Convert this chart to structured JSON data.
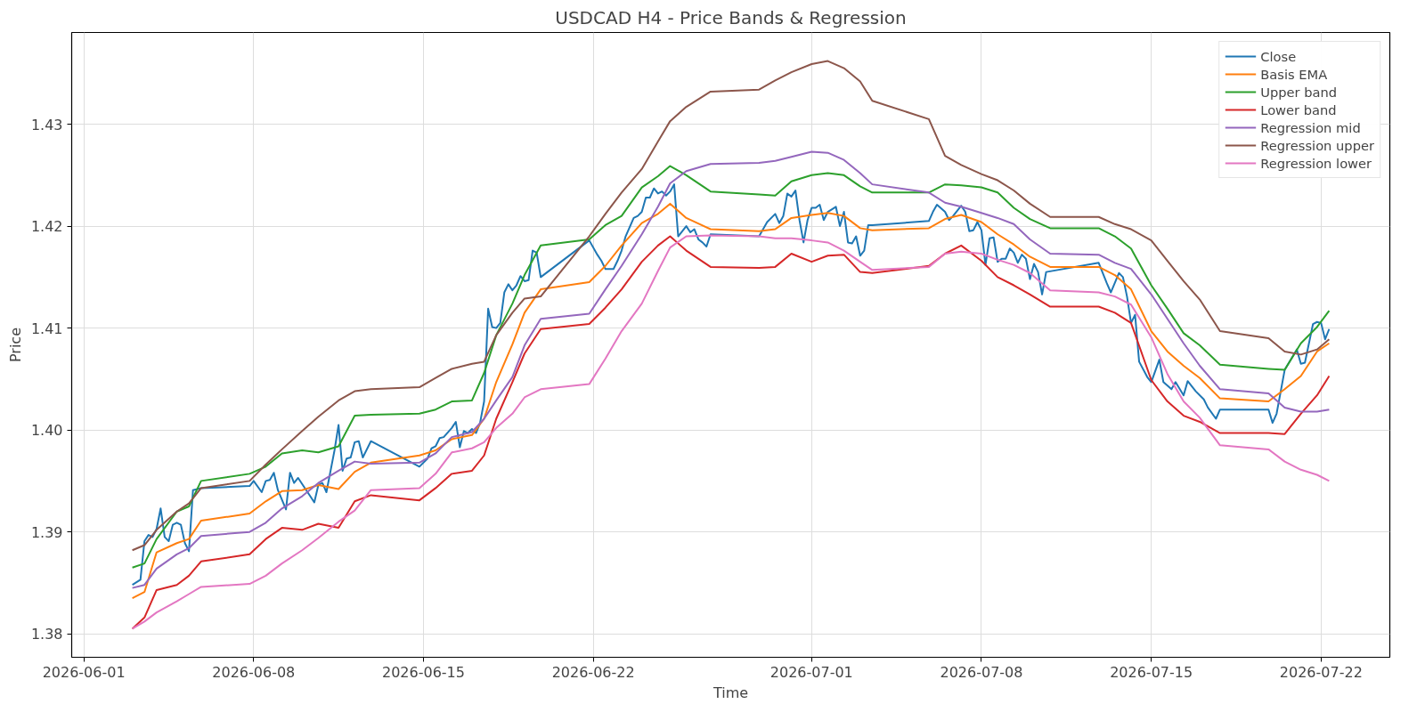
{
  "chart_data": {
    "type": "line",
    "title": "USDCAD H4 - Price Bands & Regression",
    "xlabel": "Time",
    "ylabel": "Price",
    "x": [
      "2026-06-03T00:00",
      "2026-06-03T12:00",
      "2026-06-04T00:00",
      "2026-06-04T20:00",
      "2026-06-05T08:00",
      "2026-06-05T20:00",
      "2026-06-07T20:00",
      "2026-06-08T12:00",
      "2026-06-09T04:00",
      "2026-06-10T00:00",
      "2026-06-10T16:00",
      "2026-06-11T12:00",
      "2026-06-12T04:00",
      "2026-06-12T20:00",
      "2026-06-14T20:00",
      "2026-06-15T12:00",
      "2026-06-16T04:00",
      "2026-06-17T00:00",
      "2026-06-17T12:00",
      "2026-06-18T00:00",
      "2026-06-18T16:00",
      "2026-06-19T04:00",
      "2026-06-19T20:00",
      "2026-06-21T20:00",
      "2026-06-22T12:00",
      "2026-06-23T04:00",
      "2026-06-24T00:00",
      "2026-06-24T16:00",
      "2026-06-25T04:00",
      "2026-06-25T20:00",
      "2026-06-26T20:00",
      "2026-06-28T20:00",
      "2026-06-29T12:00",
      "2026-06-30T04:00",
      "2026-07-01T00:00",
      "2026-07-01T16:00",
      "2026-07-02T08:00",
      "2026-07-03T00:00",
      "2026-07-03T12:00",
      "2026-07-05T20:00",
      "2026-07-06T12:00",
      "2026-07-07T04:00",
      "2026-07-08T00:00",
      "2026-07-08T16:00",
      "2026-07-09T08:00",
      "2026-07-10T00:00",
      "2026-07-10T20:00",
      "2026-07-12T20:00",
      "2026-07-13T12:00",
      "2026-07-14T04:00",
      "2026-07-15T00:00",
      "2026-07-15T16:00",
      "2026-07-16T08:00",
      "2026-07-17T00:00",
      "2026-07-17T20:00",
      "2026-07-19T20:00",
      "2026-07-20T12:00",
      "2026-07-21T04:00",
      "2026-07-21T20:00",
      "2026-07-22T08:00"
    ],
    "series": [
      {
        "name": "Close",
        "color": "#1f77b4",
        "x": [
          "2026-06-03T00:00",
          "2026-06-03T08:00",
          "2026-06-03T12:00",
          "2026-06-03T16:00",
          "2026-06-03T20:00",
          "2026-06-04T00:00",
          "2026-06-04T04:00",
          "2026-06-04T08:00",
          "2026-06-04T12:00",
          "2026-06-04T16:00",
          "2026-06-04T20:00",
          "2026-06-05T00:00",
          "2026-06-05T04:00",
          "2026-06-05T08:00",
          "2026-06-05T12:00",
          "2026-06-05T20:00",
          "2026-06-07T20:00",
          "2026-06-08T00:00",
          "2026-06-08T08:00",
          "2026-06-08T12:00",
          "2026-06-08T16:00",
          "2026-06-08T20:00",
          "2026-06-09T00:00",
          "2026-06-09T08:00",
          "2026-06-09T12:00",
          "2026-06-09T16:00",
          "2026-06-09T20:00",
          "2026-06-10T04:00",
          "2026-06-10T08:00",
          "2026-06-10T12:00",
          "2026-06-10T16:00",
          "2026-06-10T20:00",
          "2026-06-11T00:00",
          "2026-06-11T08:00",
          "2026-06-11T12:00",
          "2026-06-11T16:00",
          "2026-06-11T20:00",
          "2026-06-12T00:00",
          "2026-06-12T04:00",
          "2026-06-12T08:00",
          "2026-06-12T12:00",
          "2026-06-12T20:00",
          "2026-06-14T20:00",
          "2026-06-15T04:00",
          "2026-06-15T08:00",
          "2026-06-15T12:00",
          "2026-06-15T16:00",
          "2026-06-15T20:00",
          "2026-06-16T04:00",
          "2026-06-16T08:00",
          "2026-06-16T12:00",
          "2026-06-16T16:00",
          "2026-06-16T20:00",
          "2026-06-17T00:00",
          "2026-06-17T04:00",
          "2026-06-17T08:00",
          "2026-06-17T12:00",
          "2026-06-17T16:00",
          "2026-06-17T20:00",
          "2026-06-18T00:00",
          "2026-06-18T04:00",
          "2026-06-18T08:00",
          "2026-06-18T12:00",
          "2026-06-18T16:00",
          "2026-06-18T20:00",
          "2026-06-19T00:00",
          "2026-06-19T04:00",
          "2026-06-19T08:00",
          "2026-06-19T12:00",
          "2026-06-19T16:00",
          "2026-06-19T20:00",
          "2026-06-21T20:00",
          "2026-06-22T04:00",
          "2026-06-22T08:00",
          "2026-06-22T12:00",
          "2026-06-22T20:00",
          "2026-06-23T00:00",
          "2026-06-23T04:00",
          "2026-06-23T08:00",
          "2026-06-23T16:00",
          "2026-06-23T20:00",
          "2026-06-24T00:00",
          "2026-06-24T04:00",
          "2026-06-24T08:00",
          "2026-06-24T12:00",
          "2026-06-24T16:00",
          "2026-06-24T20:00",
          "2026-06-25T00:00",
          "2026-06-25T04:00",
          "2026-06-25T08:00",
          "2026-06-25T12:00",
          "2026-06-25T16:00",
          "2026-06-25T20:00",
          "2026-06-26T00:00",
          "2026-06-26T04:00",
          "2026-06-26T08:00",
          "2026-06-26T12:00",
          "2026-06-26T16:00",
          "2026-06-26T20:00",
          "2026-06-28T20:00",
          "2026-06-29T04:00",
          "2026-06-29T12:00",
          "2026-06-29T16:00",
          "2026-06-29T20:00",
          "2026-06-30T00:00",
          "2026-06-30T04:00",
          "2026-06-30T08:00",
          "2026-06-30T12:00",
          "2026-06-30T16:00",
          "2026-06-30T20:00",
          "2026-07-01T00:00",
          "2026-07-01T04:00",
          "2026-07-01T08:00",
          "2026-07-01T12:00",
          "2026-07-01T16:00",
          "2026-07-02T00:00",
          "2026-07-02T04:00",
          "2026-07-02T08:00",
          "2026-07-02T12:00",
          "2026-07-02T16:00",
          "2026-07-02T20:00",
          "2026-07-03T00:00",
          "2026-07-03T04:00",
          "2026-07-03T08:00",
          "2026-07-03T12:00",
          "2026-07-05T20:00",
          "2026-07-06T00:00",
          "2026-07-06T04:00",
          "2026-07-06T12:00",
          "2026-07-06T16:00",
          "2026-07-06T20:00",
          "2026-07-07T04:00",
          "2026-07-07T08:00",
          "2026-07-07T12:00",
          "2026-07-07T16:00",
          "2026-07-07T20:00",
          "2026-07-08T00:00",
          "2026-07-08T04:00",
          "2026-07-08T08:00",
          "2026-07-08T12:00",
          "2026-07-08T16:00",
          "2026-07-08T20:00",
          "2026-07-09T00:00",
          "2026-07-09T04:00",
          "2026-07-09T08:00",
          "2026-07-09T12:00",
          "2026-07-09T16:00",
          "2026-07-09T20:00",
          "2026-07-10T00:00",
          "2026-07-10T04:00",
          "2026-07-10T08:00",
          "2026-07-10T12:00",
          "2026-07-10T16:00",
          "2026-07-12T20:00",
          "2026-07-13T04:00",
          "2026-07-13T08:00",
          "2026-07-13T16:00",
          "2026-07-13T20:00",
          "2026-07-14T00:00",
          "2026-07-14T04:00",
          "2026-07-14T08:00",
          "2026-07-14T12:00",
          "2026-07-14T20:00",
          "2026-07-15T00:00",
          "2026-07-15T08:00",
          "2026-07-15T12:00",
          "2026-07-15T20:00",
          "2026-07-16T00:00",
          "2026-07-16T08:00",
          "2026-07-16T12:00",
          "2026-07-16T20:00",
          "2026-07-17T04:00",
          "2026-07-17T08:00",
          "2026-07-17T16:00",
          "2026-07-17T20:00",
          "2026-07-19T20:00",
          "2026-07-20T00:00",
          "2026-07-20T04:00",
          "2026-07-20T12:00",
          "2026-07-21T00:00",
          "2026-07-21T04:00",
          "2026-07-21T08:00",
          "2026-07-21T16:00",
          "2026-07-21T20:00",
          "2026-07-22T00:00",
          "2026-07-22T04:00",
          "2026-07-22T08:00"
        ],
        "values": [
          1.3848,
          1.3853,
          1.3891,
          1.3897,
          1.3895,
          1.3903,
          1.3923,
          1.3895,
          1.3891,
          1.3907,
          1.3909,
          1.3907,
          1.3889,
          1.3881,
          1.3941,
          1.3943,
          1.3945,
          1.395,
          1.3939,
          1.395,
          1.3951,
          1.3958,
          1.3941,
          1.3922,
          1.3958,
          1.3948,
          1.3953,
          1.3941,
          1.3935,
          1.3929,
          1.3946,
          1.3948,
          1.3939,
          1.398,
          1.4005,
          1.396,
          1.3972,
          1.3973,
          1.3988,
          1.3989,
          1.3973,
          1.3989,
          1.3964,
          1.3972,
          1.3982,
          1.3984,
          1.3992,
          1.3993,
          1.4002,
          1.4008,
          1.3983,
          1.3999,
          1.3997,
          1.4001,
          1.3997,
          1.4007,
          1.4028,
          1.4119,
          1.4101,
          1.41,
          1.4105,
          1.4135,
          1.4143,
          1.4137,
          1.4142,
          1.4151,
          1.4146,
          1.4147,
          1.4176,
          1.4174,
          1.415,
          1.4186,
          1.4172,
          1.4166,
          1.4158,
          1.4158,
          1.4166,
          1.4176,
          1.419,
          1.4208,
          1.421,
          1.4214,
          1.4228,
          1.4228,
          1.4237,
          1.4232,
          1.4234,
          1.423,
          1.4234,
          1.4241,
          1.419,
          1.4195,
          1.42,
          1.4194,
          1.4197,
          1.4187,
          1.4184,
          1.418,
          1.4192,
          1.419,
          1.4204,
          1.4212,
          1.4203,
          1.421,
          1.4232,
          1.4229,
          1.4235,
          1.4206,
          1.4184,
          1.4206,
          1.4218,
          1.4218,
          1.4221,
          1.4206,
          1.4214,
          1.4219,
          1.42,
          1.4214,
          1.4184,
          1.4183,
          1.419,
          1.4171,
          1.4176,
          1.4201,
          1.4201,
          1.4205,
          1.4214,
          1.4221,
          1.4214,
          1.4206,
          1.421,
          1.422,
          1.4214,
          1.4195,
          1.4196,
          1.4204,
          1.4196,
          1.4162,
          1.4188,
          1.4189,
          1.4165,
          1.4168,
          1.4168,
          1.4178,
          1.4174,
          1.4164,
          1.4172,
          1.4168,
          1.4148,
          1.4163,
          1.4155,
          1.4133,
          1.4155,
          1.4164,
          1.4144,
          1.4135,
          1.4154,
          1.415,
          1.4131,
          1.4105,
          1.4113,
          1.4067,
          1.4052,
          1.4047,
          1.4069,
          1.4047,
          1.404,
          1.4047,
          1.4034,
          1.4048,
          1.4038,
          1.403,
          1.4022,
          1.4011,
          1.402,
          1.402,
          1.4007,
          1.4016,
          1.4059,
          1.4079,
          1.4065,
          1.4066,
          1.4104,
          1.4106,
          1.4105,
          1.4089,
          1.4099
        ]
      },
      {
        "name": "Basis EMA",
        "color": "#ff7f0e",
        "values": [
          1.3835,
          1.3841,
          1.388,
          1.3889,
          1.3893,
          1.3911,
          1.3918,
          1.393,
          1.394,
          1.3941,
          1.3946,
          1.3942,
          1.3959,
          1.3968,
          1.3975,
          1.398,
          1.3991,
          1.3995,
          1.4011,
          1.4047,
          1.4084,
          1.4115,
          1.4138,
          1.4145,
          1.4161,
          1.4181,
          1.4203,
          1.4212,
          1.4222,
          1.4208,
          1.4197,
          1.4195,
          1.4197,
          1.4208,
          1.4211,
          1.4213,
          1.421,
          1.4198,
          1.4196,
          1.4198,
          1.4207,
          1.4211,
          1.4204,
          1.4192,
          1.4182,
          1.417,
          1.416,
          1.416,
          1.4152,
          1.4138,
          1.4097,
          1.4077,
          1.4063,
          1.4051,
          1.4031,
          1.4028,
          1.404,
          1.4053,
          1.4077,
          1.4085
        ]
      },
      {
        "name": "Upper band",
        "color": "#2ca02c",
        "values": [
          1.3865,
          1.3869,
          1.3893,
          1.392,
          1.3925,
          1.395,
          1.3957,
          1.3964,
          1.3977,
          1.398,
          1.3978,
          1.3984,
          1.4014,
          1.4015,
          1.4016,
          1.402,
          1.4028,
          1.4029,
          1.4056,
          1.4093,
          1.4124,
          1.4152,
          1.4181,
          1.4187,
          1.4201,
          1.421,
          1.4238,
          1.4249,
          1.4259,
          1.425,
          1.4234,
          1.4231,
          1.423,
          1.4244,
          1.425,
          1.4252,
          1.425,
          1.4239,
          1.4233,
          1.4233,
          1.4241,
          1.424,
          1.4238,
          1.4233,
          1.4218,
          1.4207,
          1.4198,
          1.4198,
          1.419,
          1.4178,
          1.4142,
          1.4119,
          1.4095,
          1.4083,
          1.4064,
          1.406,
          1.4059,
          1.4085,
          1.4101,
          1.4117
        ]
      },
      {
        "name": "Lower band",
        "color": "#d62728",
        "values": [
          1.3805,
          1.3816,
          1.3843,
          1.3848,
          1.3857,
          1.3871,
          1.3878,
          1.3893,
          1.3904,
          1.3902,
          1.3908,
          1.3904,
          1.393,
          1.3936,
          1.3931,
          1.3943,
          1.3957,
          1.396,
          1.3975,
          1.4011,
          1.4047,
          1.4075,
          1.4099,
          1.4104,
          1.412,
          1.4138,
          1.4165,
          1.4181,
          1.419,
          1.4176,
          1.416,
          1.4159,
          1.416,
          1.4173,
          1.4165,
          1.4171,
          1.4172,
          1.4155,
          1.4154,
          1.4161,
          1.4173,
          1.4181,
          1.4166,
          1.415,
          1.4142,
          1.4133,
          1.4121,
          1.4121,
          1.4115,
          1.4105,
          1.4049,
          1.4028,
          1.4014,
          1.4008,
          1.3997,
          1.3997,
          1.3996,
          1.4016,
          1.4034,
          1.4053
        ]
      },
      {
        "name": "Regression mid",
        "color": "#9467bd",
        "values": [
          1.3845,
          1.3848,
          1.3864,
          1.3878,
          1.3884,
          1.3896,
          1.39,
          1.3909,
          1.3923,
          1.3935,
          1.3948,
          1.396,
          1.3969,
          1.3967,
          1.3968,
          1.3977,
          1.3993,
          1.3998,
          1.4011,
          1.4029,
          1.4052,
          1.4083,
          1.4109,
          1.4114,
          1.4138,
          1.4161,
          1.4192,
          1.4219,
          1.4242,
          1.4254,
          1.4261,
          1.4262,
          1.4264,
          1.4268,
          1.4273,
          1.4272,
          1.4265,
          1.4252,
          1.4241,
          1.4233,
          1.4223,
          1.4219,
          1.4213,
          1.4208,
          1.4202,
          1.4187,
          1.4173,
          1.4172,
          1.4164,
          1.4158,
          1.4133,
          1.4109,
          1.4085,
          1.4063,
          1.404,
          1.4036,
          1.4022,
          1.4018,
          1.4018,
          1.402
        ]
      },
      {
        "name": "Regression upper",
        "color": "#8c564b",
        "values": [
          1.3882,
          1.3887,
          1.3902,
          1.392,
          1.3928,
          1.3943,
          1.395,
          1.3966,
          1.3981,
          1.3999,
          1.4013,
          1.4029,
          1.4038,
          1.404,
          1.4042,
          1.4051,
          1.406,
          1.4065,
          1.4067,
          1.4093,
          1.4115,
          1.4129,
          1.4131,
          1.419,
          1.4212,
          1.4233,
          1.4256,
          1.4283,
          1.4303,
          1.4317,
          1.4332,
          1.4334,
          1.4343,
          1.4351,
          1.4359,
          1.4362,
          1.4355,
          1.4342,
          1.4323,
          1.4305,
          1.4269,
          1.426,
          1.4251,
          1.4245,
          1.4235,
          1.4222,
          1.4209,
          1.4209,
          1.4202,
          1.4197,
          1.4186,
          1.4166,
          1.4146,
          1.4128,
          1.4097,
          1.409,
          1.4077,
          1.4074,
          1.4079,
          1.4089
        ]
      },
      {
        "name": "Regression lower",
        "color": "#e377c2",
        "values": [
          1.3805,
          1.3812,
          1.3821,
          1.3832,
          1.3839,
          1.3846,
          1.3849,
          1.3857,
          1.3869,
          1.3882,
          1.3894,
          1.391,
          1.3921,
          1.3941,
          1.3943,
          1.3957,
          1.3978,
          1.3982,
          1.3988,
          1.4002,
          1.4016,
          1.4032,
          1.404,
          1.4045,
          1.407,
          1.4097,
          1.4124,
          1.4156,
          1.4179,
          1.419,
          1.4191,
          1.419,
          1.4188,
          1.4188,
          1.4186,
          1.4184,
          1.4176,
          1.4165,
          1.4157,
          1.416,
          1.4173,
          1.4175,
          1.4173,
          1.4167,
          1.4162,
          1.4154,
          1.4137,
          1.4135,
          1.4131,
          1.4123,
          1.4091,
          1.4055,
          1.4028,
          1.4012,
          1.3985,
          1.3981,
          1.3969,
          1.3961,
          1.3956,
          1.395
        ]
      }
    ],
    "xlim": [
      "2026-05-31T12:00",
      "2026-07-24T20:00"
    ],
    "xticks": [
      "2026-06-01",
      "2026-06-08",
      "2026-06-15",
      "2026-06-22",
      "2026-07-01",
      "2026-07-08",
      "2026-07-15",
      "2026-07-22"
    ],
    "ylim": [
      1.3777,
      1.439
    ],
    "yticks": [
      1.38,
      1.39,
      {
        "value": 1.4,
        "label": "1.40"
      },
      1.41,
      1.42,
      1.43
    ],
    "grid": true,
    "legend": "top right"
  }
}
